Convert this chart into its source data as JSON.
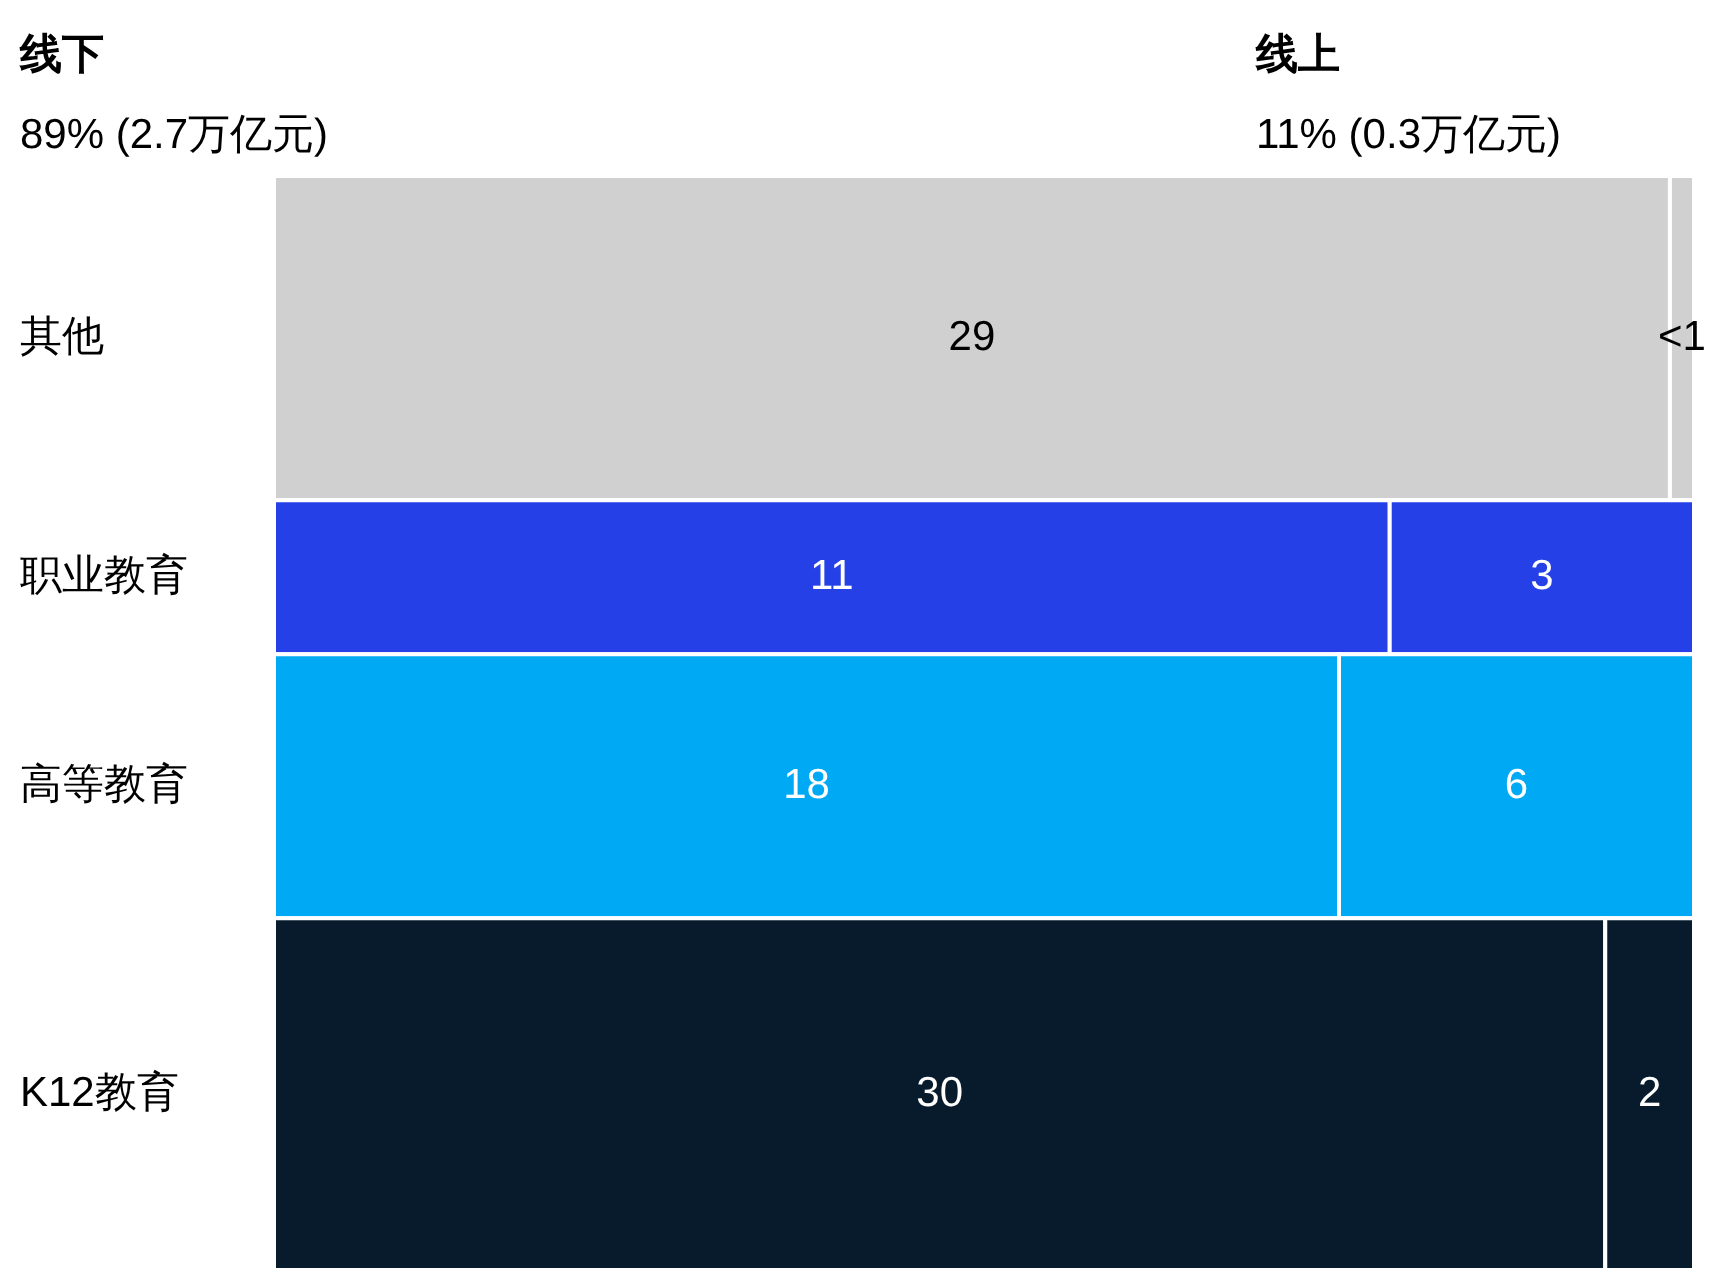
{
  "chart_data": {
    "type": "other",
    "categories": [
      "其他",
      "职业教育",
      "高等教育",
      "K12教育"
    ],
    "series": [
      {
        "colors": [
          "#d0d0d0",
          "#2440e6",
          "#00a9f4",
          "#071b2c"
        ],
        "values": [
          29,
          11,
          18,
          30
        ],
        "value_labels": [
          "29",
          "11",
          "18",
          "30"
        ]
      },
      {
        "colors": [
          "#d0d0d0",
          "#2440e6",
          "#00a9f4",
          "#071b2c"
        ],
        "values": [
          0.5,
          3,
          6,
          2
        ],
        "value_labels": [
          "<1",
          "3",
          "6",
          "2"
        ]
      }
    ],
    "annotations": [
      "线下",
      "89% (2.7万亿元)",
      "线上",
      "11% (0.3万亿元)"
    ]
  }
}
